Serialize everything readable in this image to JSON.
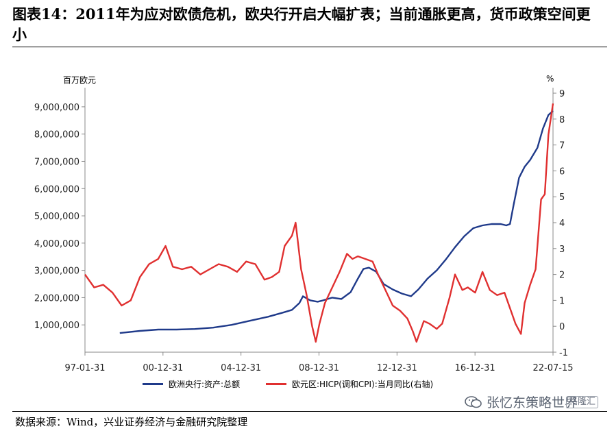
{
  "title": "图表14：2011年为应对欧债危机，欧央行开启大幅扩表；当前通胀更高，货币政策空间更小",
  "source": "数据来源：Wind，兴业证券经济与金融研究院整理",
  "watermark": {
    "text": "张忆东策略世界",
    "badge": "格隆汇"
  },
  "chart_data": {
    "type": "line",
    "y_left_unit": "百万欧元",
    "y_right_unit": "%",
    "x_ticks": [
      "97-01-31",
      "00-12-31",
      "04-12-31",
      "08-12-31",
      "12-12-31",
      "16-12-31",
      "22-07-15"
    ],
    "x_range": [
      1997.0,
      2022.55
    ],
    "y_left_range": [
      0,
      9500000
    ],
    "y_left_ticks": [
      1000000,
      2000000,
      3000000,
      4000000,
      5000000,
      6000000,
      7000000,
      8000000,
      9000000
    ],
    "y_left_tick_labels": [
      "1,000,000",
      "2,000,000",
      "3,000,000",
      "4,000,000",
      "5,000,000",
      "6,000,000",
      "7,000,000",
      "8,000,000",
      "9,000,000"
    ],
    "y_right_range": [
      -1,
      9
    ],
    "y_right_ticks": [
      -1,
      0,
      1,
      2,
      3,
      4,
      5,
      6,
      7,
      8,
      9
    ],
    "y_right_tick_labels": [
      "-1",
      "0",
      "1",
      "2",
      "3",
      "4",
      "5",
      "6",
      "7",
      "8",
      "9"
    ],
    "series": [
      {
        "name": "欧洲央行:资产:总额",
        "axis": "left",
        "color": "#1f3a8a",
        "x": [
          1998.9,
          2000.0,
          2001.0,
          2002.0,
          2003.0,
          2004.0,
          2005.0,
          2006.0,
          2007.0,
          2007.8,
          2008.3,
          2008.7,
          2008.9,
          2009.3,
          2009.7,
          2010.0,
          2010.5,
          2011.0,
          2011.5,
          2011.9,
          2012.2,
          2012.5,
          2012.9,
          2013.3,
          2013.8,
          2014.3,
          2014.8,
          2015.2,
          2015.7,
          2016.2,
          2016.7,
          2017.2,
          2017.7,
          2018.2,
          2018.7,
          2019.2,
          2019.7,
          2020.0,
          2020.2,
          2020.4,
          2020.7,
          2021.0,
          2021.3,
          2021.7,
          2022.0,
          2022.3,
          2022.55
        ],
        "y": [
          700000,
          780000,
          830000,
          830000,
          850000,
          900000,
          1000000,
          1150000,
          1300000,
          1450000,
          1550000,
          1800000,
          2050000,
          1900000,
          1850000,
          1900000,
          2000000,
          1950000,
          2200000,
          2700000,
          3050000,
          3100000,
          2950000,
          2500000,
          2300000,
          2150000,
          2050000,
          2300000,
          2700000,
          3000000,
          3400000,
          3850000,
          4250000,
          4550000,
          4650000,
          4700000,
          4700000,
          4650000,
          4700000,
          5400000,
          6400000,
          6800000,
          7050000,
          7500000,
          8200000,
          8700000,
          8850000
        ]
      },
      {
        "name": "欧元区:HICP(调和CPI):当月同比(右轴)",
        "axis": "right",
        "color": "#e03030",
        "x": [
          1997.0,
          1997.5,
          1998.0,
          1998.5,
          1999.0,
          1999.5,
          2000.0,
          2000.5,
          2001.0,
          2001.4,
          2001.8,
          2002.3,
          2002.8,
          2003.3,
          2003.8,
          2004.3,
          2004.8,
          2005.3,
          2005.8,
          2006.3,
          2006.8,
          2007.2,
          2007.6,
          2007.9,
          2008.3,
          2008.5,
          2008.8,
          2009.1,
          2009.4,
          2009.6,
          2009.8,
          2010.1,
          2010.5,
          2010.9,
          2011.3,
          2011.6,
          2011.9,
          2012.3,
          2012.7,
          2013.0,
          2013.4,
          2013.8,
          2014.2,
          2014.6,
          2014.9,
          2015.1,
          2015.5,
          2015.8,
          2016.2,
          2016.5,
          2016.9,
          2017.2,
          2017.6,
          2017.9,
          2018.3,
          2018.7,
          2019.1,
          2019.5,
          2019.9,
          2020.2,
          2020.5,
          2020.8,
          2021.0,
          2021.3,
          2021.6,
          2021.9,
          2022.1,
          2022.3,
          2022.55
        ],
        "y": [
          2.0,
          1.5,
          1.6,
          1.3,
          0.8,
          1.0,
          1.9,
          2.4,
          2.6,
          3.1,
          2.3,
          2.2,
          2.3,
          2.0,
          2.2,
          2.4,
          2.3,
          2.1,
          2.5,
          2.4,
          1.8,
          1.9,
          2.1,
          3.1,
          3.5,
          4.0,
          2.2,
          1.2,
          0.0,
          -0.6,
          0.1,
          0.9,
          1.5,
          2.1,
          2.8,
          2.6,
          2.7,
          2.6,
          2.5,
          2.0,
          1.4,
          0.8,
          0.6,
          0.3,
          -0.2,
          -0.6,
          0.2,
          0.1,
          -0.1,
          0.1,
          1.1,
          2.0,
          1.4,
          1.5,
          1.3,
          2.1,
          1.4,
          1.2,
          1.3,
          0.7,
          0.1,
          -0.3,
          0.9,
          1.6,
          2.2,
          4.9,
          5.1,
          7.4,
          8.6
        ]
      }
    ]
  }
}
